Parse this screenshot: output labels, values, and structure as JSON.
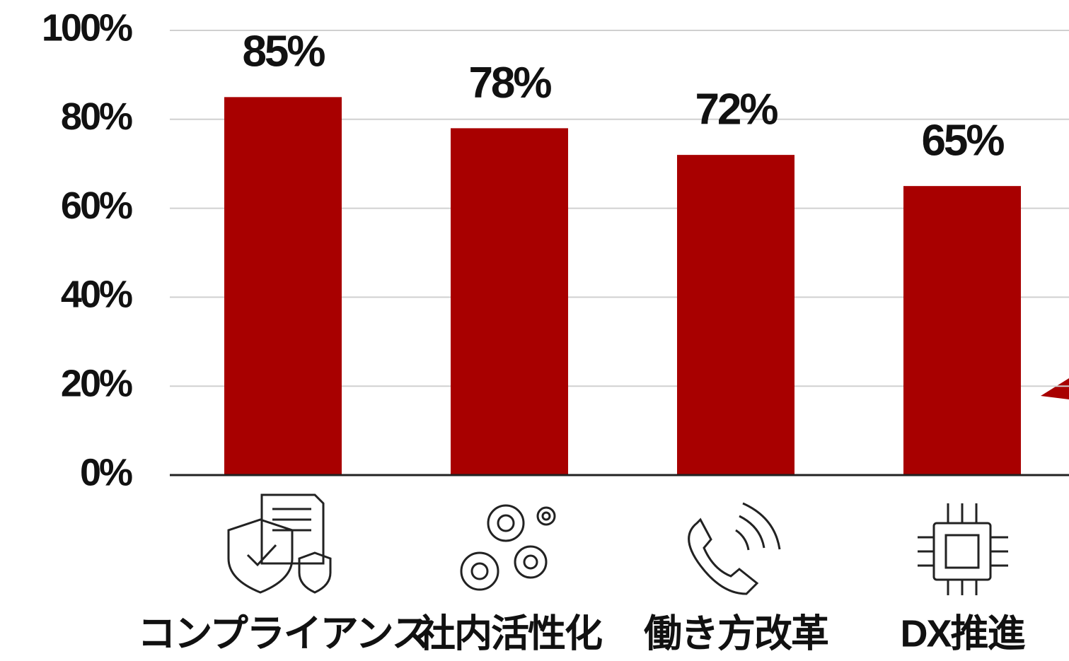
{
  "chart_data": {
    "type": "bar",
    "categories": [
      "コンプライアンス",
      "社内活性化",
      "働き方改革",
      "DX推進"
    ],
    "values": [
      85,
      78,
      72,
      65
    ],
    "value_labels": [
      "85%",
      "78%",
      "72%",
      "65%"
    ],
    "color": "#a80000",
    "ylim": [
      0,
      100
    ],
    "yticks": [
      {
        "value": 0,
        "label": "0%"
      },
      {
        "value": 20,
        "label": "20%"
      },
      {
        "value": 40,
        "label": "40%"
      },
      {
        "value": 60,
        "label": "60%"
      },
      {
        "value": 80,
        "label": "80%"
      },
      {
        "value": 100,
        "label": "100%"
      }
    ],
    "grid": true
  }
}
